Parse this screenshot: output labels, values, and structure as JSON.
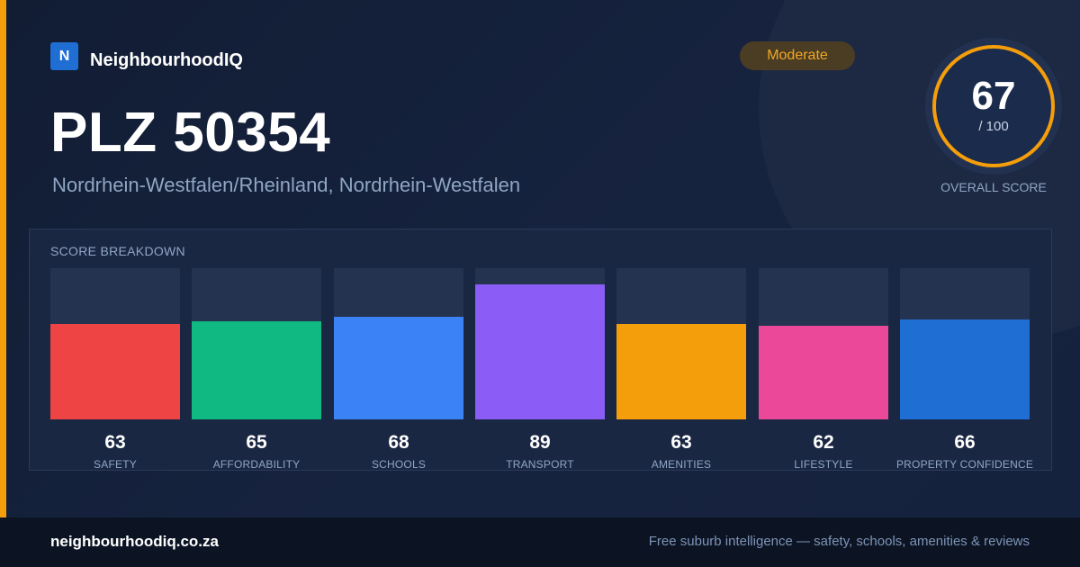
{
  "brand": {
    "logo_letter": "N",
    "name": "NeighbourhoodIQ"
  },
  "badge": {
    "label": "Moderate",
    "color": "#f5a623"
  },
  "title": "PLZ 50354",
  "subtitle": "Nordrhein-Westfalen/Rheinland, Nordrhein-Westfalen",
  "overall": {
    "score": "67",
    "max": "/ 100",
    "caption": "OVERALL SCORE",
    "ring_color": "#f59e0b"
  },
  "breakdown_title": "SCORE BREAKDOWN",
  "chart_data": {
    "type": "bar",
    "title": "SCORE BREAKDOWN",
    "categories": [
      "SAFETY",
      "AFFORDABILITY",
      "SCHOOLS",
      "TRANSPORT",
      "AMENITIES",
      "LIFESTYLE",
      "PROPERTY CONFIDENCE"
    ],
    "values": [
      63,
      65,
      68,
      89,
      63,
      62,
      66
    ],
    "value_labels": [
      "63",
      "65",
      "68",
      "89",
      "63",
      "62",
      "66"
    ],
    "colors": [
      "#ef4444",
      "#10b981",
      "#3b82f6",
      "#8b5cf6",
      "#f59e0b",
      "#ec4899",
      "#1f6ed4"
    ],
    "ylim": [
      0,
      100
    ],
    "grid": false
  },
  "footer": {
    "url": "neighbourhoodiq.co.za",
    "tagline": "Free suburb intelligence — safety, schools, amenities & reviews"
  },
  "colors": {
    "accent": "#f59e0b",
    "background": "#14213a"
  }
}
